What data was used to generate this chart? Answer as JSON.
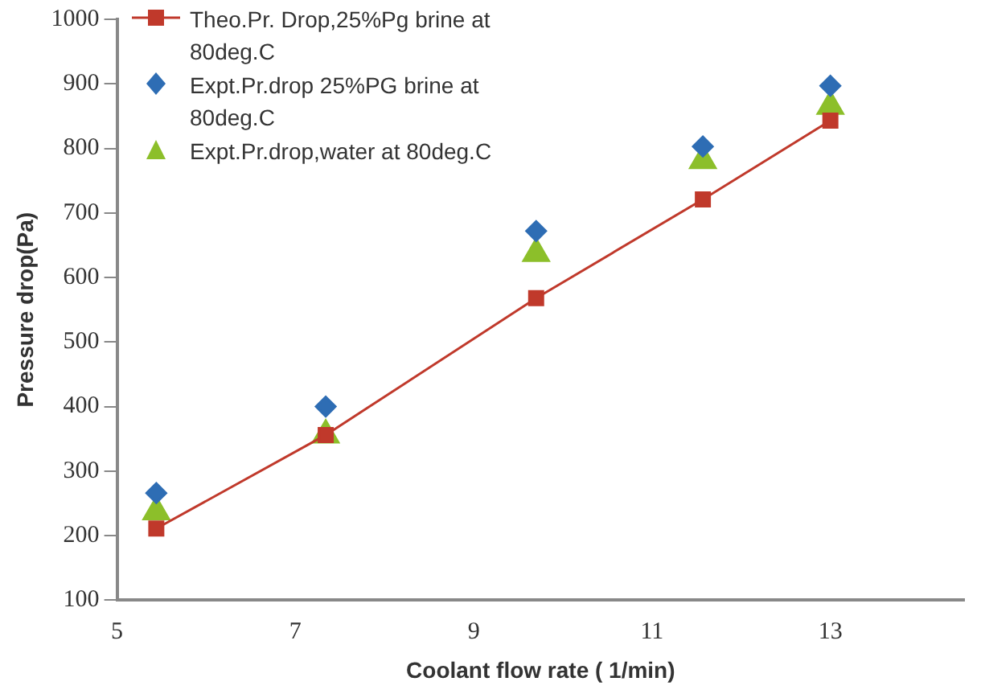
{
  "chart_data": {
    "type": "line",
    "xlabel": "Coolant flow rate ( 1/min)",
    "ylabel": "Pressure drop(Pa)",
    "xlim": [
      5,
      14.5
    ],
    "xticks": [
      5,
      7,
      9,
      11,
      13
    ],
    "ylim": [
      100,
      1000
    ],
    "yticks": [
      100,
      200,
      300,
      400,
      500,
      600,
      700,
      800,
      900,
      1000
    ],
    "grid": false,
    "legend": "top left",
    "series": [
      {
        "name": "Theo.Pr. Drop,25%Pg brine at 80deg.C",
        "marker": "square",
        "color": "#c0392b",
        "x": [
          5.44,
          7.34,
          9.7,
          11.57,
          13.0
        ],
        "values": [
          211,
          356,
          568,
          721,
          843
        ]
      },
      {
        "name": "Expt.Pr.drop 25%PG brine at 80deg.C",
        "type": "scatter",
        "marker": "diamond",
        "color": "#2e6db4",
        "x": [
          5.44,
          7.34,
          9.7,
          11.57,
          13.0
        ],
        "values": [
          266,
          400,
          672,
          803,
          897
        ]
      },
      {
        "name": "Expt.Pr.drop,water at 80deg.C",
        "type": "scatter",
        "marker": "triangle",
        "color": "#8cbf2a",
        "x": [
          5.44,
          7.34,
          9.7,
          11.57,
          13.0
        ],
        "values": [
          237,
          356,
          637,
          781,
          865
        ]
      }
    ]
  }
}
